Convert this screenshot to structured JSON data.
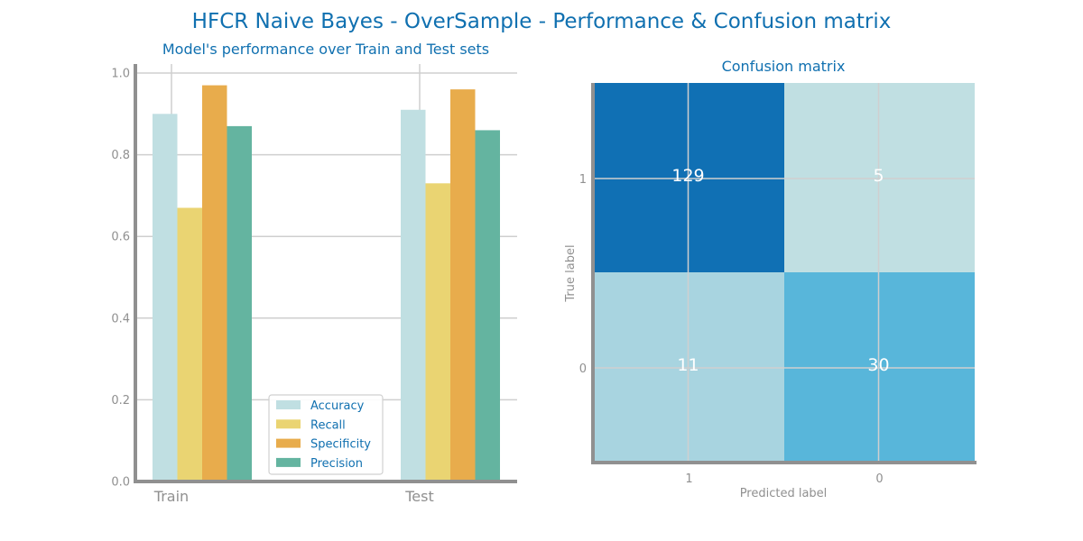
{
  "suptitle": "HFCR Naive Bayes - OverSample - Performance & Confusion matrix",
  "chart_data": [
    {
      "type": "bar",
      "title": "Model's performance over Train and Test sets",
      "categories": [
        "Train",
        "Test"
      ],
      "series": [
        {
          "name": "Accuracy",
          "values": [
            0.9,
            0.91
          ],
          "color": "#c0dfe2"
        },
        {
          "name": "Recall",
          "values": [
            0.67,
            0.73
          ],
          "color": "#ead472"
        },
        {
          "name": "Specificity",
          "values": [
            0.97,
            0.96
          ],
          "color": "#e8ac4c"
        },
        {
          "name": "Precision",
          "values": [
            0.87,
            0.86
          ],
          "color": "#64b4a0"
        }
      ],
      "ylim": [
        0,
        1.0
      ],
      "yticks": [
        "0.0",
        "0.2",
        "0.4",
        "0.6",
        "0.8",
        "1.0"
      ],
      "grid": true,
      "legend": "lower-center"
    },
    {
      "type": "heatmap",
      "title": "Confusion matrix",
      "xlabel": "Predicted label",
      "ylabel": "True label",
      "x_tick_labels": [
        "1",
        "0"
      ],
      "y_tick_labels": [
        "1",
        "0"
      ],
      "matrix": [
        [
          129,
          5
        ],
        [
          11,
          30
        ]
      ],
      "cell_labels": [
        [
          "129",
          "5"
        ],
        [
          "11",
          "30"
        ]
      ],
      "cell_colors": [
        [
          "#1070b4",
          "#c0dfe2"
        ],
        [
          "#a8d4e0",
          "#58b6da"
        ]
      ]
    }
  ]
}
